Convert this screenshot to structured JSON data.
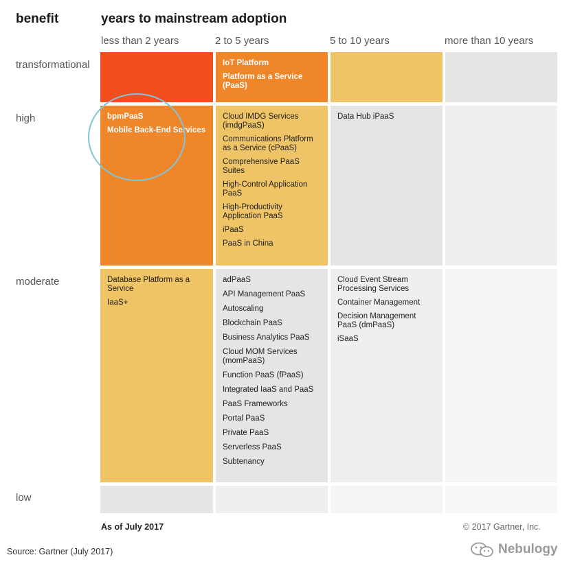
{
  "title_left": "benefit",
  "title_main": "years to mainstream adoption",
  "columns": [
    "less than 2 years",
    "2 to 5 years",
    "5 to 10 years",
    "more than 10 years"
  ],
  "rows": [
    "transformational",
    "high",
    "moderate",
    "low"
  ],
  "colors": {
    "red": "#f24e1e",
    "orange": "#f0862a",
    "yellow": "#efc466",
    "gray": "#e5e5e5",
    "light_gray": "#efefef",
    "lighter_gray": "#f5f5f5",
    "highlight_circle": "#7fc4d6"
  },
  "cells": {
    "transformational": {
      "lt2": [],
      "y2to5": [
        "IoT Platform",
        "Platform as a Service (PaaS)"
      ],
      "y5to10": [],
      "gt10": []
    },
    "high": {
      "lt2": [
        "bpmPaaS",
        "Mobile Back-End Services"
      ],
      "y2to5": [
        "Cloud IMDG Services (imdgPaaS)",
        "Communications Platform as a Service (cPaaS)",
        "Comprehensive PaaS Suites",
        "High-Control Application PaaS",
        "High-Productivity Application PaaS",
        "iPaaS",
        "PaaS in China"
      ],
      "y5to10": [
        "Data Hub iPaaS"
      ],
      "gt10": []
    },
    "moderate": {
      "lt2": [
        "Database Platform as a Service",
        "IaaS+"
      ],
      "y2to5": [
        "adPaaS",
        "API Management PaaS",
        "Autoscaling",
        "Blockchain PaaS",
        "Business Analytics PaaS",
        "Cloud MOM Services (momPaaS)",
        "Function PaaS (fPaaS)",
        "Integrated IaaS and PaaS",
        "PaaS Frameworks",
        "Portal PaaS",
        "Private PaaS",
        "Serverless PaaS",
        "Subtenancy"
      ],
      "y5to10": [
        "Cloud Event Stream Processing Services",
        "Container Management",
        "Decision Management PaaS (dmPaaS)",
        "iSaaS"
      ],
      "gt10": []
    },
    "low": {
      "lt2": [],
      "y2to5": [],
      "y5to10": [],
      "gt10": []
    }
  },
  "footer": {
    "as_of": "As of July 2017",
    "copyright": "© 2017 Gartner, Inc.",
    "source": "Source: Gartner (July 2017)",
    "watermark": "Nebulogy"
  }
}
